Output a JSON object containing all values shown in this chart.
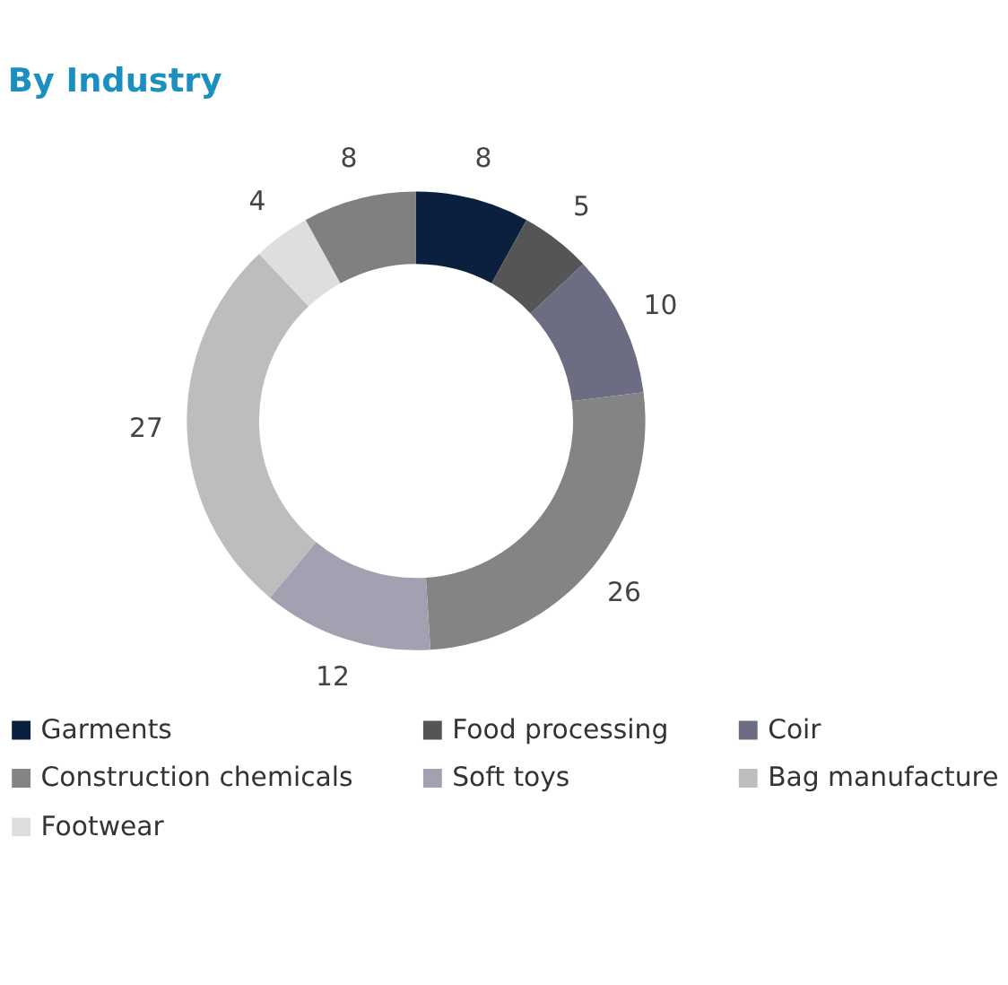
{
  "chart_data": {
    "type": "donut",
    "title": "By Industry",
    "categories": [
      "Garments",
      "Food processing",
      "Coir",
      "Construction chemicals",
      "Soft toys",
      "Bag manufacture",
      "Footwear",
      null
    ],
    "values": [
      8,
      5,
      10,
      26,
      12,
      27,
      4,
      8
    ],
    "colors": [
      "#0b1f3f",
      "#555555",
      "#6c6c82",
      "#848484",
      "#a2a1b1",
      "#bdbdbd",
      "#dedede",
      "#808080"
    ],
    "data_labels": true,
    "legend": "bottom"
  }
}
